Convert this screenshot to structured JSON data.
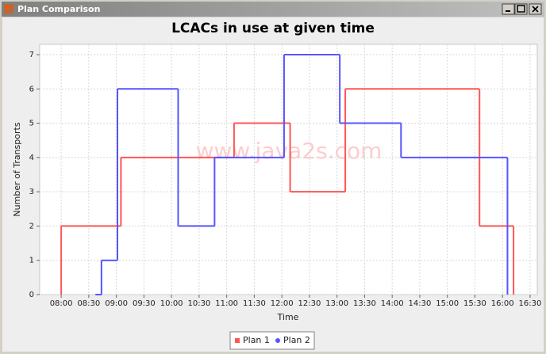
{
  "window": {
    "title": "Plan Comparison"
  },
  "chart_data": {
    "type": "step",
    "title": "LCACs in use at given time",
    "watermark": "www.java2s.com",
    "x_label": "Time",
    "y_label": "Number of Transports",
    "xlim": [
      7.61,
      16.63
    ],
    "ylim": [
      0,
      7.3
    ],
    "xticks": [
      {
        "value": 8,
        "label": "08:00"
      },
      {
        "value": 8.5,
        "label": "08:30"
      },
      {
        "value": 9,
        "label": "09:00"
      },
      {
        "value": 9.5,
        "label": "09:30"
      },
      {
        "value": 10,
        "label": "10:00"
      },
      {
        "value": 10.5,
        "label": "10:30"
      },
      {
        "value": 11,
        "label": "11:00"
      },
      {
        "value": 11.5,
        "label": "11:30"
      },
      {
        "value": 12,
        "label": "12:00"
      },
      {
        "value": 12.5,
        "label": "12:30"
      },
      {
        "value": 13,
        "label": "13:00"
      },
      {
        "value": 13.5,
        "label": "13:30"
      },
      {
        "value": 14,
        "label": "14:00"
      },
      {
        "value": 14.5,
        "label": "14:30"
      },
      {
        "value": 15,
        "label": "15:00"
      },
      {
        "value": 15.5,
        "label": "15:30"
      },
      {
        "value": 16,
        "label": "16:00"
      },
      {
        "value": 16.5,
        "label": "16:30"
      }
    ],
    "yticks": [
      0,
      1,
      2,
      3,
      4,
      5,
      6,
      7
    ],
    "grid": true,
    "legend": "bottom",
    "series": [
      {
        "name": "Plan 1",
        "color": "#ff5555",
        "marker": "square",
        "x": [
          8.0,
          8.0,
          9.083,
          11.133,
          12.15,
          13.15,
          15.583,
          16.2
        ],
        "values": [
          0,
          2,
          4,
          5,
          3,
          6,
          2,
          0
        ]
      },
      {
        "name": "Plan 2",
        "color": "#5555ff",
        "marker": "circle",
        "x": [
          8.62,
          8.73,
          9.02,
          10.12,
          10.78,
          12.04,
          13.05,
          14.16,
          16.09
        ],
        "values": [
          0,
          1,
          6,
          2,
          4,
          7,
          5,
          4,
          0
        ]
      }
    ]
  }
}
